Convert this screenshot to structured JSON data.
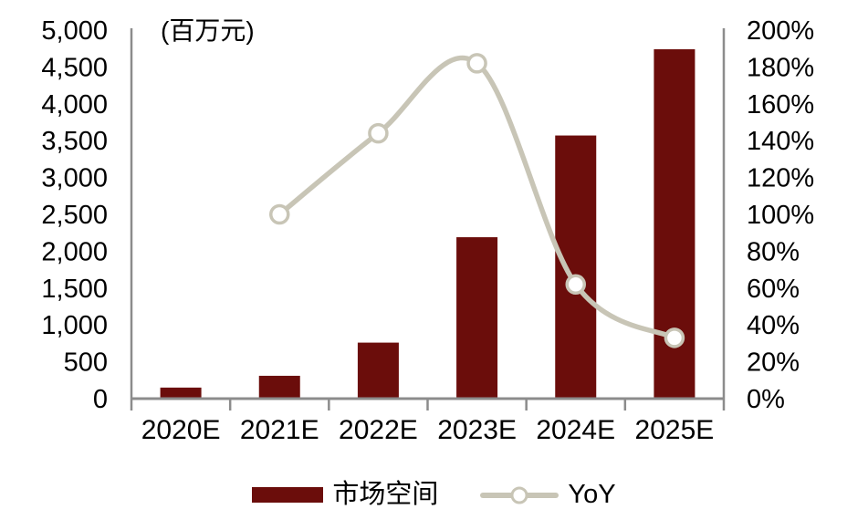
{
  "chart_data": {
    "type": "bar",
    "subtype": "bar-line-combo",
    "title": "",
    "unit_label": "(百万元)",
    "categories": [
      "2020E",
      "2021E",
      "2022E",
      "2023E",
      "2024E",
      "2025E"
    ],
    "series": [
      {
        "name": "市场空间",
        "type": "bar",
        "axis": "left",
        "color": "#6B0D0B",
        "values": [
          150,
          310,
          760,
          2190,
          3570,
          4740
        ]
      },
      {
        "name": "YoY",
        "type": "line",
        "axis": "right",
        "color": "#C8C5B6",
        "marker_fill": "#FFFFFF",
        "values": [
          null,
          100,
          144,
          182,
          62,
          33
        ]
      }
    ],
    "left_axis": {
      "title": "(百万元)",
      "min": 0,
      "max": 5000,
      "step": 500,
      "tick_labels": [
        "0",
        "500",
        "1,000",
        "1,500",
        "2,000",
        "2,500",
        "3,000",
        "3,500",
        "4,000",
        "4,500",
        "5,000"
      ]
    },
    "right_axis": {
      "min": 0,
      "max": 200,
      "step": 20,
      "suffix": "%",
      "tick_labels": [
        "0%",
        "20%",
        "40%",
        "60%",
        "80%",
        "100%",
        "120%",
        "140%",
        "160%",
        "180%",
        "200%"
      ]
    },
    "grid": false,
    "legend_position": "bottom"
  },
  "legend": {
    "items": [
      {
        "label": "市场空间",
        "swatch": "bar"
      },
      {
        "label": "YoY",
        "swatch": "line"
      }
    ]
  },
  "colors": {
    "bar": "#6B0D0B",
    "line": "#C8C5B6",
    "axis": "#8C8C8C",
    "text": "#000000",
    "background": "#FFFFFF"
  }
}
